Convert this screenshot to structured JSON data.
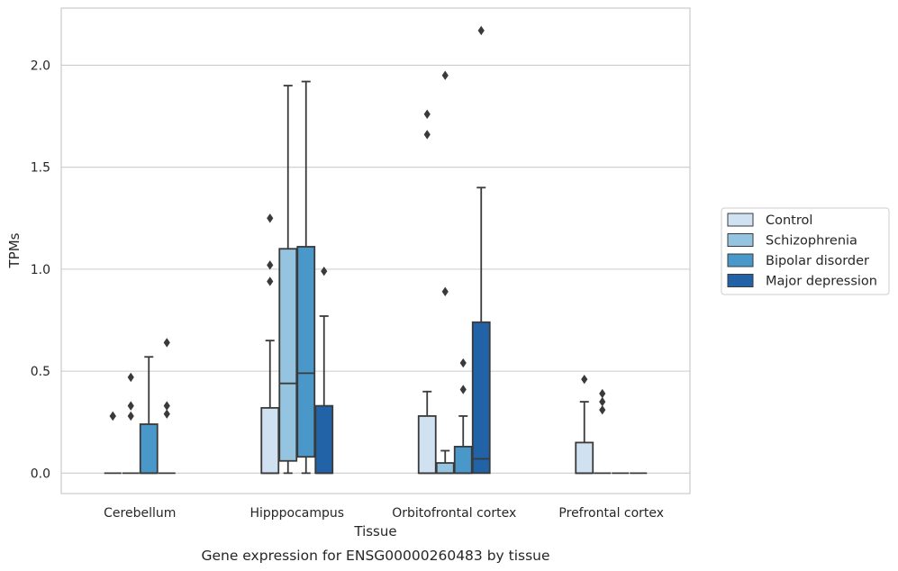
{
  "chart_data": {
    "type": "boxplot",
    "caption": "Gene expression for ENSG00000260483 by tissue",
    "xlabel": "Tissue",
    "ylabel": "TPMs",
    "ylim": [
      -0.1,
      2.28
    ],
    "yticks": [
      "0.0",
      "0.5",
      "1.0",
      "1.5",
      "2.0"
    ],
    "ytick_values": [
      0,
      0.5,
      1.0,
      1.5,
      2.0
    ],
    "grid": "horizontal",
    "legend_placement": "right",
    "categories": [
      "Cerebellum",
      "Hipppocampus",
      "Orbitofrontal cortex",
      "Prefrontal cortex"
    ],
    "colors": {
      "Control": "#d0e1f2",
      "Schizophrenia": "#94c4df",
      "Bipolar disorder": "#4a98c9",
      "Major depression": "#2163a6",
      "line": "#3a3a3a",
      "grid": "#cccccc"
    },
    "series": [
      {
        "name": "Control",
        "boxes": [
          {
            "q1": 0,
            "median": 0,
            "q3": 0,
            "whisker_low": 0,
            "whisker_high": 0,
            "outliers": [
              0.28,
              0.28
            ]
          },
          {
            "q1": 0,
            "median": 0,
            "q3": 0.32,
            "whisker_low": 0,
            "whisker_high": 0.65,
            "outliers": [
              0.94,
              1.02,
              1.25
            ]
          },
          {
            "q1": 0,
            "median": 0,
            "q3": 0.28,
            "whisker_low": 0,
            "whisker_high": 0.4,
            "outliers": [
              1.66,
              1.76
            ]
          },
          {
            "q1": 0,
            "median": 0,
            "q3": 0.15,
            "whisker_low": 0,
            "whisker_high": 0.35,
            "outliers": [
              0.46
            ]
          }
        ]
      },
      {
        "name": "Schizophrenia",
        "boxes": [
          {
            "q1": 0,
            "median": 0,
            "q3": 0,
            "whisker_low": 0,
            "whisker_high": 0,
            "outliers": [
              0.28,
              0.33,
              0.47
            ]
          },
          {
            "q1": 0.06,
            "median": 0.44,
            "q3": 1.1,
            "whisker_low": 0,
            "whisker_high": 1.9,
            "outliers": []
          },
          {
            "q1": 0,
            "median": 0,
            "q3": 0.05,
            "whisker_low": 0,
            "whisker_high": 0.11,
            "outliers": [
              0.89,
              1.95
            ]
          },
          {
            "q1": 0,
            "median": 0,
            "q3": 0,
            "whisker_low": 0,
            "whisker_high": 0,
            "outliers": [
              0.31,
              0.35,
              0.39
            ]
          }
        ]
      },
      {
        "name": "Bipolar disorder",
        "boxes": [
          {
            "q1": 0,
            "median": 0,
            "q3": 0.24,
            "whisker_low": 0,
            "whisker_high": 0.57,
            "outliers": []
          },
          {
            "q1": 0.08,
            "median": 0.49,
            "q3": 1.11,
            "whisker_low": 0,
            "whisker_high": 1.92,
            "outliers": []
          },
          {
            "q1": 0,
            "median": 0,
            "q3": 0.13,
            "whisker_low": 0,
            "whisker_high": 0.28,
            "outliers": [
              0.41,
              0.54
            ]
          },
          {
            "q1": 0,
            "median": 0,
            "q3": 0,
            "whisker_low": 0,
            "whisker_high": 0,
            "outliers": []
          }
        ]
      },
      {
        "name": "Major depression",
        "boxes": [
          {
            "q1": 0,
            "median": 0,
            "q3": 0,
            "whisker_low": 0,
            "whisker_high": 0,
            "outliers": [
              0.29,
              0.33,
              0.64
            ]
          },
          {
            "q1": 0,
            "median": 0,
            "q3": 0.33,
            "whisker_low": 0,
            "whisker_high": 0.77,
            "outliers": [
              0.99
            ]
          },
          {
            "q1": 0,
            "median": 0.07,
            "q3": 0.74,
            "whisker_low": 0,
            "whisker_high": 1.4,
            "outliers": [
              2.17
            ]
          },
          {
            "q1": 0,
            "median": 0,
            "q3": 0,
            "whisker_low": 0,
            "whisker_high": 0,
            "outliers": []
          }
        ]
      }
    ]
  }
}
